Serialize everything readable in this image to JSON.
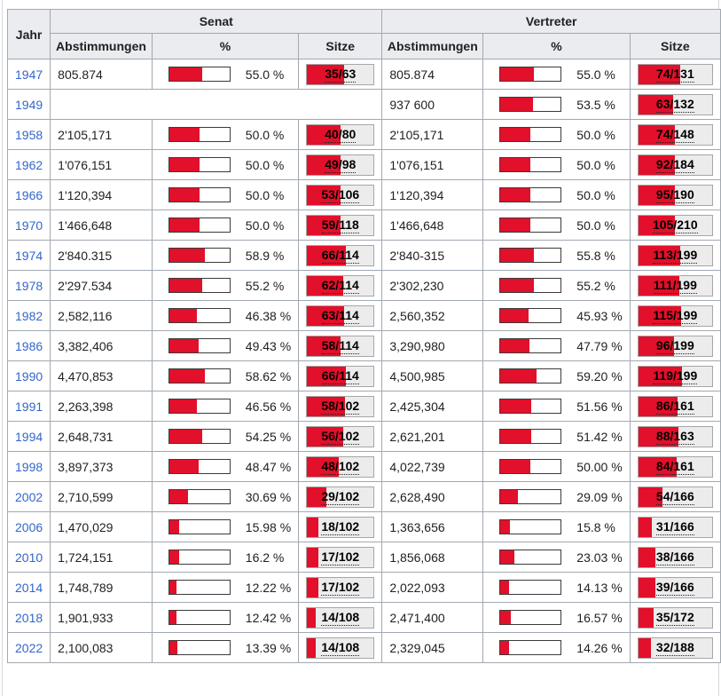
{
  "colors": {
    "bar_red": "#E2102A",
    "header_bg": "#eaecf0",
    "table_border": "#a2a9b1",
    "seatbox_bg": "#ececec",
    "percent_bar_border": "#3b3b3b",
    "year_link_blue": "#3366CC"
  },
  "chart_data": {
    "type": "table",
    "title": "",
    "header": {
      "jahr": "Jahr",
      "senat": "Senat",
      "vertreter": "Vertreter",
      "abstimmungen": "Abstimmungen",
      "percent": "%",
      "sitze": "Sitze"
    },
    "rows": [
      {
        "jahr": "1947",
        "senat": {
          "abstimmungen": "805.874",
          "percent_label": "55.0 %",
          "percent": 55.0,
          "sitze": "35/63"
        },
        "vertreter": {
          "abstimmungen": "805.874",
          "percent_label": "55.0 %",
          "percent": 55.0,
          "sitze": "74/131"
        }
      },
      {
        "jahr": "1949",
        "senat": null,
        "vertreter": {
          "abstimmungen": "937 600",
          "percent_label": "53.5 %",
          "percent": 53.5,
          "sitze": "63/132"
        }
      },
      {
        "jahr": "1958",
        "senat": {
          "abstimmungen": "2'105,171",
          "percent_label": "50.0 %",
          "percent": 50.0,
          "sitze": "40/80"
        },
        "vertreter": {
          "abstimmungen": "2'105,171",
          "percent_label": "50.0 %",
          "percent": 50.0,
          "sitze": "74/148"
        }
      },
      {
        "jahr": "1962",
        "senat": {
          "abstimmungen": "1'076,151",
          "percent_label": "50.0 %",
          "percent": 50.0,
          "sitze": "49/98"
        },
        "vertreter": {
          "abstimmungen": "1'076,151",
          "percent_label": "50.0 %",
          "percent": 50.0,
          "sitze": "92/184"
        }
      },
      {
        "jahr": "1966",
        "senat": {
          "abstimmungen": "1'120,394",
          "percent_label": "50.0 %",
          "percent": 50.0,
          "sitze": "53/106"
        },
        "vertreter": {
          "abstimmungen": "1'120,394",
          "percent_label": "50.0 %",
          "percent": 50.0,
          "sitze": "95/190"
        }
      },
      {
        "jahr": "1970",
        "senat": {
          "abstimmungen": "1'466,648",
          "percent_label": "50.0 %",
          "percent": 50.0,
          "sitze": "59/118"
        },
        "vertreter": {
          "abstimmungen": "1'466,648",
          "percent_label": "50.0 %",
          "percent": 50.0,
          "sitze": "105/210"
        }
      },
      {
        "jahr": "1974",
        "senat": {
          "abstimmungen": "2'840.315",
          "percent_label": "58.9 %",
          "percent": 58.9,
          "sitze": "66/114"
        },
        "vertreter": {
          "abstimmungen": "2'840-315",
          "percent_label": "55.8 %",
          "percent": 55.8,
          "sitze": "113/199"
        }
      },
      {
        "jahr": "1978",
        "senat": {
          "abstimmungen": "2'297.534",
          "percent_label": "55.2 %",
          "percent": 55.2,
          "sitze": "62/114"
        },
        "vertreter": {
          "abstimmungen": "2'302,230",
          "percent_label": "55.2 %",
          "percent": 55.2,
          "sitze": "111/199"
        }
      },
      {
        "jahr": "1982",
        "senat": {
          "abstimmungen": "2,582,116",
          "percent_label": "46.38 %",
          "percent": 46.38,
          "sitze": "63/114"
        },
        "vertreter": {
          "abstimmungen": "2,560,352",
          "percent_label": "45.93 %",
          "percent": 45.93,
          "sitze": "115/199"
        }
      },
      {
        "jahr": "1986",
        "senat": {
          "abstimmungen": "3,382,406",
          "percent_label": "49.43 %",
          "percent": 49.43,
          "sitze": "58/114"
        },
        "vertreter": {
          "abstimmungen": "3,290,980",
          "percent_label": "47.79 %",
          "percent": 47.79,
          "sitze": "96/199"
        }
      },
      {
        "jahr": "1990",
        "senat": {
          "abstimmungen": "4,470,853",
          "percent_label": "58.62 %",
          "percent": 58.62,
          "sitze": "66/114"
        },
        "vertreter": {
          "abstimmungen": "4,500,985",
          "percent_label": "59.20 %",
          "percent": 59.2,
          "sitze": "119/199"
        }
      },
      {
        "jahr": "1991",
        "senat": {
          "abstimmungen": "2,263,398",
          "percent_label": "46.56 %",
          "percent": 46.56,
          "sitze": "58/102"
        },
        "vertreter": {
          "abstimmungen": "2,425,304",
          "percent_label": "51.56 %",
          "percent": 51.56,
          "sitze": "86/161"
        }
      },
      {
        "jahr": "1994",
        "senat": {
          "abstimmungen": "2,648,731",
          "percent_label": "54.25 %",
          "percent": 54.25,
          "sitze": "56/102"
        },
        "vertreter": {
          "abstimmungen": "2,621,201",
          "percent_label": "51.42 %",
          "percent": 51.42,
          "sitze": "88/163"
        }
      },
      {
        "jahr": "1998",
        "senat": {
          "abstimmungen": "3,897,373",
          "percent_label": "48.47 %",
          "percent": 48.47,
          "sitze": "48/102"
        },
        "vertreter": {
          "abstimmungen": "4,022,739",
          "percent_label": "50.00 %",
          "percent": 50.0,
          "sitze": "84/161"
        }
      },
      {
        "jahr": "2002",
        "senat": {
          "abstimmungen": "2,710,599",
          "percent_label": "30.69 %",
          "percent": 30.69,
          "sitze": "29/102"
        },
        "vertreter": {
          "abstimmungen": "2,628,490",
          "percent_label": "29.09 %",
          "percent": 29.09,
          "sitze": "54/166"
        }
      },
      {
        "jahr": "2006",
        "senat": {
          "abstimmungen": "1,470,029",
          "percent_label": "15.98 %",
          "percent": 15.98,
          "sitze": "18/102"
        },
        "vertreter": {
          "abstimmungen": "1,363,656",
          "percent_label": "15.8 %",
          "percent": 15.8,
          "sitze": "31/166"
        }
      },
      {
        "jahr": "2010",
        "senat": {
          "abstimmungen": "1,724,151",
          "percent_label": "16.2 %",
          "percent": 16.2,
          "sitze": "17/102"
        },
        "vertreter": {
          "abstimmungen": "1,856,068",
          "percent_label": "23.03 %",
          "percent": 23.03,
          "sitze": "38/166"
        }
      },
      {
        "jahr": "2014",
        "senat": {
          "abstimmungen": "1,748,789",
          "percent_label": "12.22 %",
          "percent": 12.22,
          "sitze": "17/102"
        },
        "vertreter": {
          "abstimmungen": "2,022,093",
          "percent_label": "14.13 %",
          "percent": 14.13,
          "sitze": "39/166"
        }
      },
      {
        "jahr": "2018",
        "senat": {
          "abstimmungen": "1,901,933",
          "percent_label": "12.42 %",
          "percent": 12.42,
          "sitze": "14/108"
        },
        "vertreter": {
          "abstimmungen": "2,471,400",
          "percent_label": "16.57 %",
          "percent": 16.57,
          "sitze": "35/172"
        }
      },
      {
        "jahr": "2022",
        "senat": {
          "abstimmungen": "2,100,083",
          "percent_label": "13.39 %",
          "percent": 13.39,
          "sitze": "14/108"
        },
        "vertreter": {
          "abstimmungen": "2,329,045",
          "percent_label": "14.26 %",
          "percent": 14.26,
          "sitze": "32/188"
        }
      }
    ]
  }
}
